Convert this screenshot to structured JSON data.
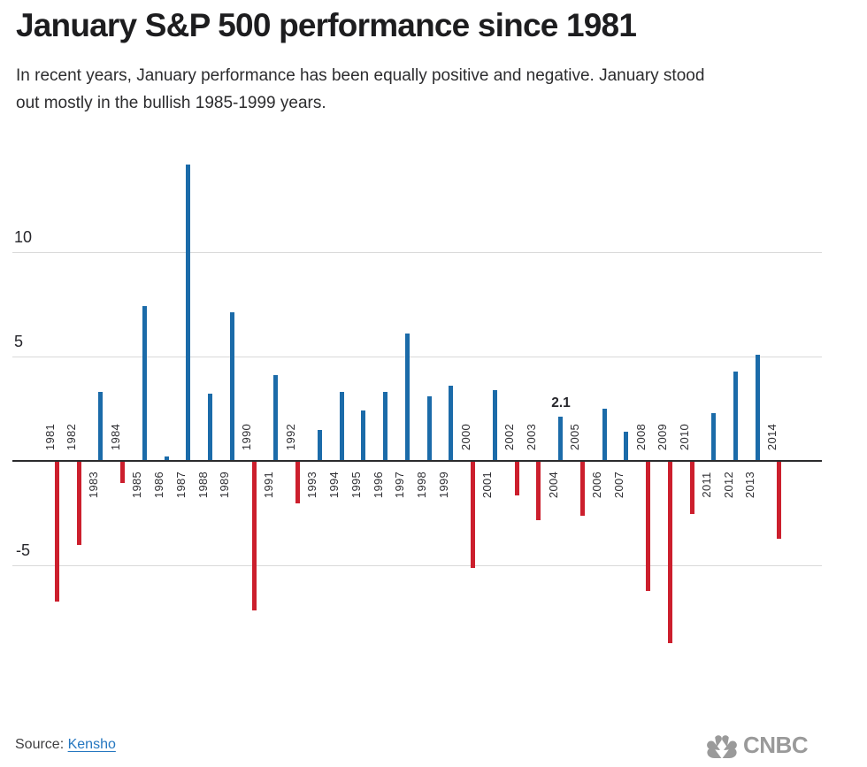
{
  "header": {
    "title": "January S&P 500 performance since 1981",
    "subtitle_line1": "In recent years, January performance has been equally positive and negative. January stood",
    "subtitle_line2": "out mostly in the bullish 1985-1999 years."
  },
  "chart_data": {
    "type": "bar",
    "title": "January S&P 500 performance since 1981",
    "categories": [
      1981,
      1982,
      1983,
      1984,
      1985,
      1986,
      1987,
      1988,
      1989,
      1990,
      1991,
      1992,
      1993,
      1994,
      1995,
      1996,
      1997,
      1998,
      1999,
      2000,
      2001,
      2002,
      2003,
      2004,
      2005,
      2006,
      2007,
      2008,
      2009,
      2010,
      2011,
      2012,
      2013,
      2014
    ],
    "values": [
      -6.7,
      -4.0,
      3.3,
      -1.0,
      7.4,
      0.2,
      14.2,
      3.2,
      7.1,
      -7.1,
      4.1,
      -2.0,
      1.5,
      3.3,
      2.4,
      3.3,
      6.1,
      3.1,
      3.6,
      -5.1,
      3.4,
      -1.6,
      -2.8,
      2.1,
      -2.6,
      2.5,
      1.4,
      -6.2,
      -8.7,
      -2.5,
      2.3,
      4.3,
      5.1,
      -3.7
    ],
    "xlabel": "",
    "ylabel": "",
    "ylim": [
      -9.5,
      15
    ],
    "grid": "horizontal",
    "legend": "none",
    "yticks": [
      {
        "value": 10,
        "label": "10"
      },
      {
        "value": 5,
        "label": "5"
      },
      {
        "value": -5,
        "label": "-5"
      }
    ],
    "annotation": {
      "year": 2004,
      "label": "2.1"
    },
    "positive_color": "#1b6ba9",
    "negative_color": "#cc1f2d"
  },
  "footer": {
    "source_label": "Source:",
    "source_link": "Kensho",
    "logo_text": "CNBC",
    "logo_color": "#9a9a9a"
  }
}
